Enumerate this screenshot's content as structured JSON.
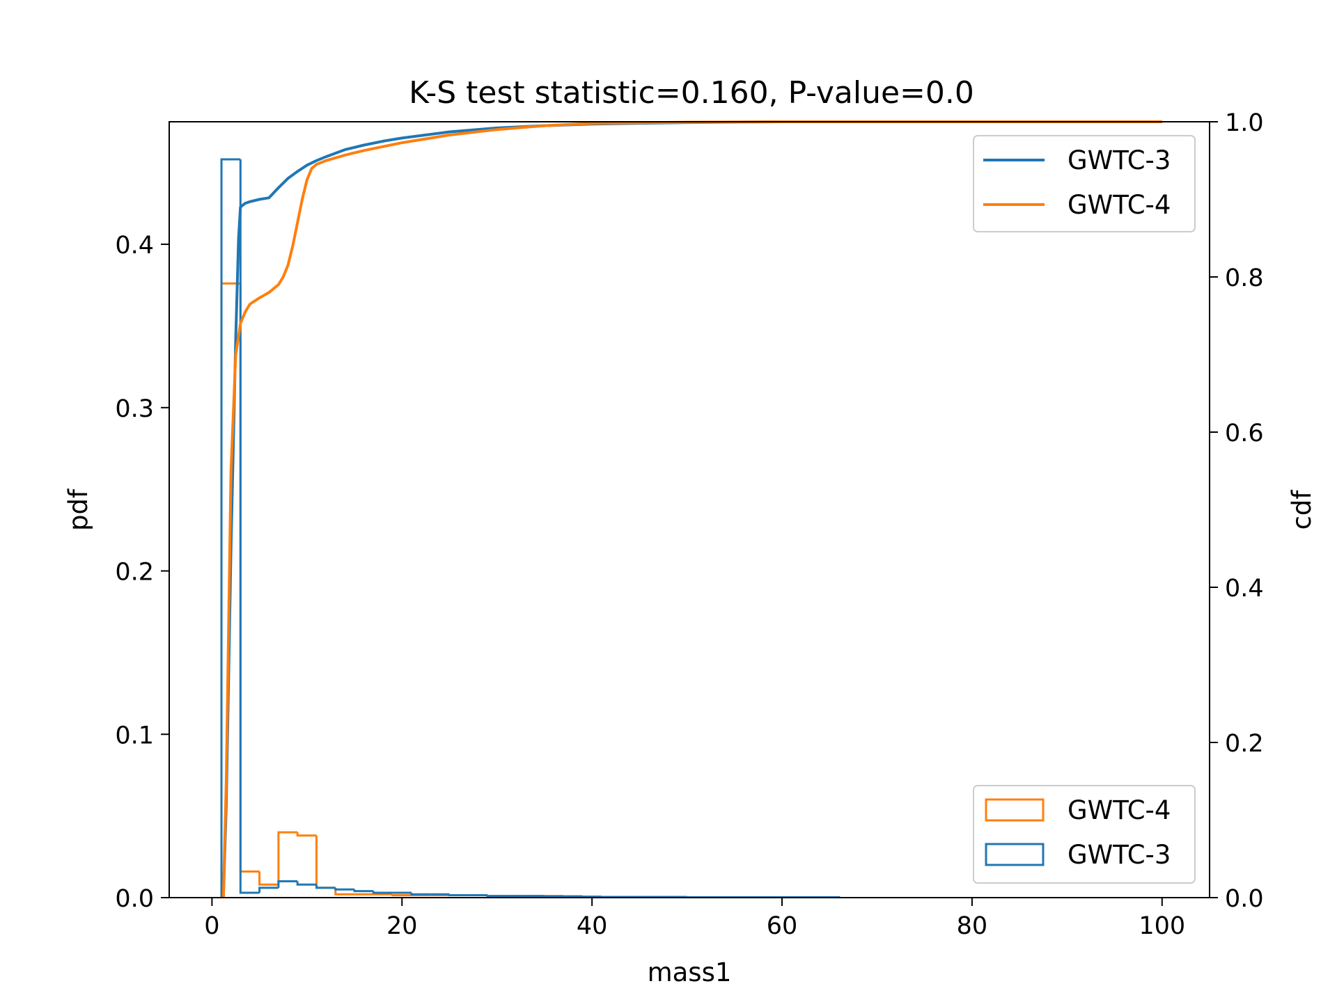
{
  "chart_data": {
    "type": "histogram+cdf",
    "title": "K-S test statistic=0.160, P-value=0.0",
    "xlabel": "mass1",
    "ylabel_left": "pdf",
    "ylabel_right": "cdf",
    "xlim": [
      -4.5,
      105
    ],
    "ylim_left": [
      0,
      0.475
    ],
    "ylim_right": [
      0,
      1.0
    ],
    "x_ticks": [
      0,
      20,
      40,
      60,
      80,
      100
    ],
    "x_tick_labels": [
      "0",
      "20",
      "40",
      "60",
      "80",
      "100"
    ],
    "y_left_ticks": [
      0.0,
      0.1,
      0.2,
      0.3,
      0.4
    ],
    "y_left_tick_labels": [
      "0.0",
      "0.1",
      "0.2",
      "0.3",
      "0.4"
    ],
    "y_right_ticks": [
      0.0,
      0.2,
      0.4,
      0.6,
      0.8,
      1.0
    ],
    "y_right_tick_labels": [
      "0.0",
      "0.2",
      "0.4",
      "0.6",
      "0.8",
      "1.0"
    ],
    "colors": {
      "GWTC-3": "#1f77b4",
      "GWTC-4": "#ff7f0e"
    },
    "legend_cdf": {
      "placement": "upper right",
      "entries": [
        "GWTC-3",
        "GWTC-4"
      ]
    },
    "legend_pdf": {
      "placement": "lower right",
      "entries": [
        "GWTC-4",
        "GWTC-3"
      ]
    },
    "pdf_series": [
      {
        "name": "GWTC-4",
        "bin_edges": [
          1,
          3,
          5,
          7,
          9,
          11,
          13,
          15,
          17,
          19,
          21,
          23,
          25,
          27,
          29,
          31,
          33,
          35,
          37,
          39,
          41,
          50,
          66
        ],
        "values": [
          0.376,
          0.016,
          0.008,
          0.04,
          0.038,
          0.006,
          0.002,
          0.002,
          0.002,
          0.0015,
          0.0015,
          0.0015,
          0.0015,
          0.0015,
          0.001,
          0.001,
          0.001,
          0.001,
          0.0008,
          0.0006,
          0.0003,
          0.0002
        ]
      },
      {
        "name": "GWTC-3",
        "bin_edges": [
          1,
          3,
          5,
          7,
          9,
          11,
          13,
          15,
          17,
          19,
          21,
          23,
          25,
          27,
          29,
          31,
          33,
          35,
          37,
          39,
          41,
          50,
          66
        ],
        "values": [
          0.452,
          0.003,
          0.006,
          0.01,
          0.008,
          0.006,
          0.005,
          0.004,
          0.003,
          0.003,
          0.002,
          0.002,
          0.0015,
          0.0015,
          0.001,
          0.001,
          0.001,
          0.0008,
          0.0008,
          0.0006,
          0.0004,
          0.0002
        ]
      }
    ],
    "cdf_series": [
      {
        "name": "GWTC-3",
        "x": [
          1.2,
          1.5,
          2.0,
          2.5,
          2.8,
          3.0,
          3.5,
          4.0,
          5.0,
          6.0,
          7.0,
          8.0,
          9.0,
          10.0,
          11.0,
          12.0,
          14.0,
          16.0,
          18.0,
          20.0,
          25.0,
          30.0,
          35.0,
          40.0,
          50.0,
          60.0,
          70.0,
          80.0,
          100.0
        ],
        "y": [
          0.0,
          0.12,
          0.45,
          0.72,
          0.85,
          0.89,
          0.895,
          0.897,
          0.9,
          0.902,
          0.915,
          0.927,
          0.936,
          0.944,
          0.95,
          0.955,
          0.964,
          0.97,
          0.975,
          0.979,
          0.987,
          0.992,
          0.995,
          0.997,
          0.999,
          1.0,
          1.0,
          1.0,
          1.0
        ]
      },
      {
        "name": "GWTC-4",
        "x": [
          1.2,
          1.5,
          2.0,
          2.5,
          3.0,
          3.5,
          4.0,
          5.0,
          6.0,
          7.0,
          7.5,
          8.0,
          8.5,
          9.0,
          9.5,
          10.0,
          10.5,
          11.0,
          12.0,
          14.0,
          16.0,
          18.0,
          20.0,
          25.0,
          30.0,
          35.0,
          40.0,
          50.0,
          60.0,
          70.0,
          80.0,
          100.0
        ],
        "y": [
          0.0,
          0.15,
          0.55,
          0.7,
          0.74,
          0.755,
          0.765,
          0.773,
          0.78,
          0.79,
          0.8,
          0.815,
          0.84,
          0.87,
          0.9,
          0.925,
          0.94,
          0.945,
          0.95,
          0.957,
          0.963,
          0.968,
          0.973,
          0.983,
          0.99,
          0.995,
          0.998,
          0.9995,
          1.0,
          1.0,
          1.0,
          1.0
        ]
      }
    ]
  }
}
